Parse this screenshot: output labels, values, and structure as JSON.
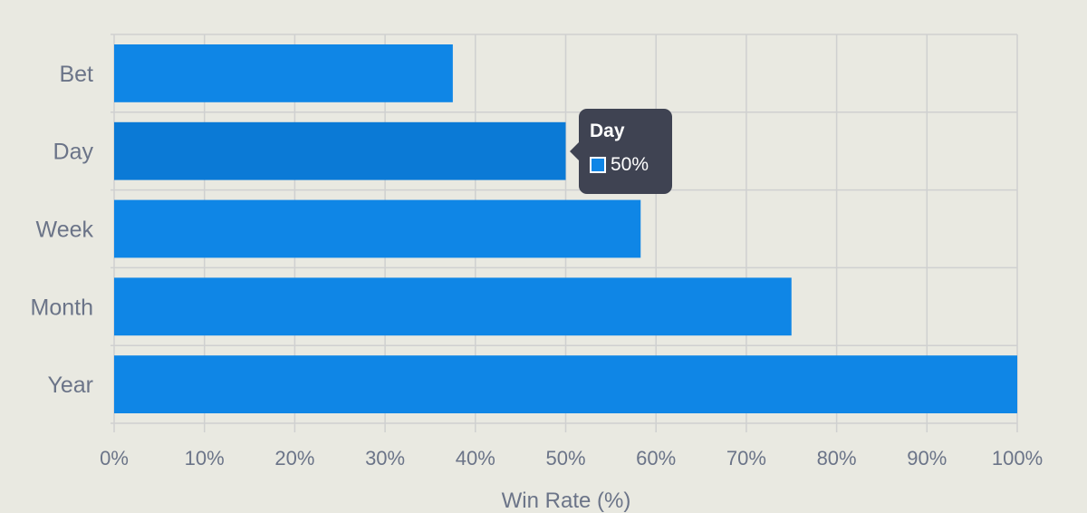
{
  "chart_data": {
    "type": "bar",
    "orientation": "horizontal",
    "categories": [
      "Bet",
      "Day",
      "Week",
      "Month",
      "Year"
    ],
    "values": [
      37.5,
      50,
      58.3,
      75,
      100
    ],
    "xlabel": "Win Rate (%)",
    "ylabel": "",
    "xlim": [
      0,
      100
    ],
    "x_ticks": [
      "0%",
      "10%",
      "20%",
      "30%",
      "40%",
      "50%",
      "60%",
      "70%",
      "80%",
      "90%",
      "100%"
    ],
    "grid": true,
    "bar_color": "#0f86e6",
    "highlight_color": "#0b7ad6",
    "highlighted_category": "Day"
  },
  "tooltip": {
    "title": "Day",
    "value": "50%",
    "swatch_color": "#0f86e6"
  }
}
